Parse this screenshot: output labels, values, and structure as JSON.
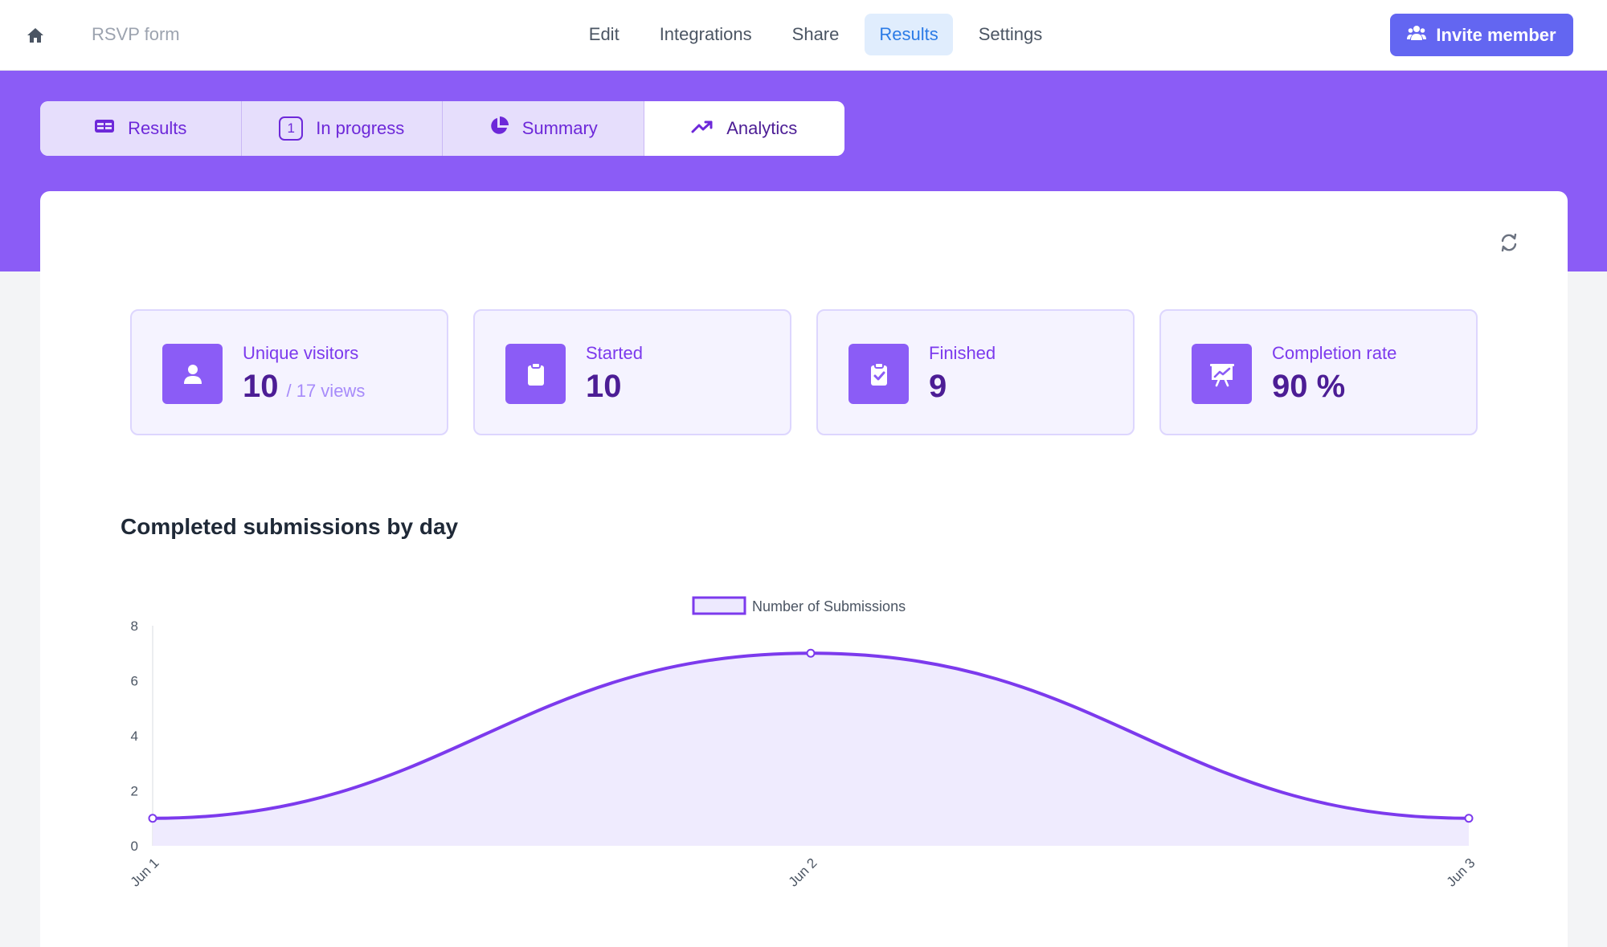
{
  "topbar": {
    "form_name": "RSVP form",
    "nav": [
      "Edit",
      "Integrations",
      "Share",
      "Results",
      "Settings"
    ],
    "active_nav": "Results",
    "invite_label": "Invite member"
  },
  "tabs": [
    {
      "label": "Results",
      "icon": "table-icon"
    },
    {
      "label": "In progress",
      "icon": "number-badge-icon",
      "badge": "1"
    },
    {
      "label": "Summary",
      "icon": "pie-chart-icon"
    },
    {
      "label": "Analytics",
      "icon": "trending-up-icon"
    }
  ],
  "active_tab": "Analytics",
  "stats": [
    {
      "label": "Unique visitors",
      "value": "10",
      "sub": "/ 17 views",
      "icon": "user-icon"
    },
    {
      "label": "Started",
      "value": "10",
      "icon": "clipboard-icon"
    },
    {
      "label": "Finished",
      "value": "9",
      "icon": "clipboard-check-icon"
    },
    {
      "label": "Completion rate",
      "value": "90 %",
      "icon": "presentation-chart-icon"
    }
  ],
  "chart_title": "Completed submissions by day",
  "colors": {
    "accent": "#8b5cf6",
    "line": "#7c3aed",
    "fill": "#ede9fe",
    "invite": "#6366f1"
  },
  "chart_data": {
    "type": "area",
    "categories": [
      "Jun 1",
      "Jun 2",
      "Jun 3"
    ],
    "series": [
      {
        "name": "Number of Submissions",
        "values": [
          1,
          7,
          1
        ]
      }
    ],
    "yticks": [
      "0",
      "2",
      "4",
      "6",
      "8"
    ],
    "ylim": [
      0,
      8
    ],
    "grid": false,
    "legend": "top-center"
  }
}
